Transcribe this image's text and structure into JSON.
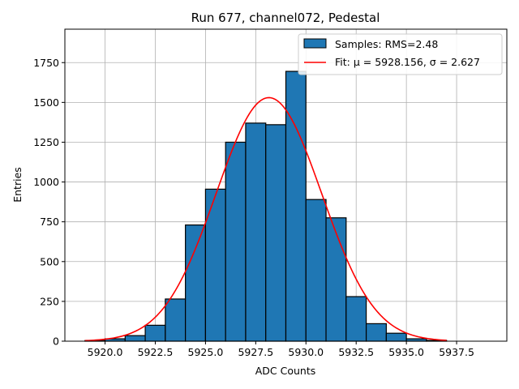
{
  "chart_data": {
    "type": "bar",
    "title": "Run 677, channel072, Pedestal",
    "xlabel": "ADC Counts",
    "ylabel": "Entries",
    "xlim": [
      5918.0,
      5940.0
    ],
    "ylim": [
      0,
      1960
    ],
    "xticks": [
      5920.0,
      5922.5,
      5925.0,
      5927.5,
      5930.0,
      5932.5,
      5935.0,
      5937.5
    ],
    "xtick_labels": [
      "5920.0",
      "5922.5",
      "5925.0",
      "5927.5",
      "5930.0",
      "5932.5",
      "5935.0",
      "5937.5"
    ],
    "yticks": [
      0,
      250,
      500,
      750,
      1000,
      1250,
      1500,
      1750
    ],
    "ytick_labels": [
      "0",
      "250",
      "500",
      "750",
      "1000",
      "1250",
      "1500",
      "1750"
    ],
    "grid": true,
    "legend_position": "top-right",
    "histogram": {
      "name": "Samples: RMS=2.48",
      "color": "#1f77b4",
      "bin_edges": [
        5919.0,
        5920.0,
        5921.0,
        5922.0,
        5923.0,
        5924.0,
        5925.0,
        5926.0,
        5927.0,
        5928.0,
        5929.0,
        5930.0,
        5931.0,
        5932.0,
        5933.0,
        5934.0,
        5935.0,
        5936.0,
        5937.0
      ],
      "counts": [
        4,
        15,
        35,
        100,
        265,
        730,
        955,
        1250,
        1370,
        1360,
        1695,
        890,
        775,
        280,
        110,
        50,
        15,
        5
      ]
    },
    "fit": {
      "name": "Fit: μ = 5928.156, σ = 2.627",
      "color": "#ff0000",
      "mu": 5928.156,
      "sigma": 2.627,
      "amplitude": 1530,
      "x_range": [
        5919.0,
        5937.0
      ]
    }
  }
}
